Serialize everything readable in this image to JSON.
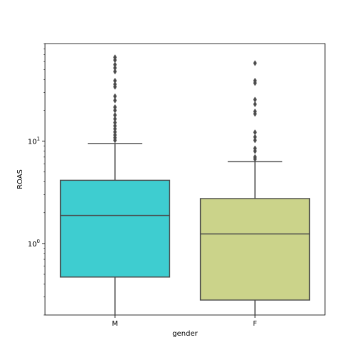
{
  "chart_data": {
    "type": "boxplot",
    "title": "",
    "xlabel": "gender",
    "ylabel": "ROAS",
    "yscale": "log",
    "ylim": [
      0.2,
      90
    ],
    "grid": false,
    "legend": "none",
    "y_tick_labels": [
      {
        "value": 1,
        "base": "10",
        "exp": "0"
      },
      {
        "value": 10,
        "base": "10",
        "exp": "1"
      }
    ],
    "categories": [
      "M",
      "F"
    ],
    "series": [
      {
        "category": "M",
        "color": "#3ecdd0",
        "whisker_low": 0.2,
        "q1": 0.47,
        "median": 1.88,
        "q3": 4.15,
        "whisker_high": 9.5,
        "outliers": [
          10.2,
          10.8,
          11.5,
          12.3,
          13.2,
          14.1,
          15.2,
          16.5,
          18.0,
          20.0,
          21.5,
          25.0,
          27.5,
          34.0,
          36.0,
          39.0,
          48.0,
          52.0,
          56.0,
          62.0,
          66.0
        ]
      },
      {
        "category": "F",
        "color": "#cbd38a",
        "whisker_low": 0.2,
        "q1": 0.28,
        "median": 1.24,
        "q3": 2.75,
        "whisker_high": 6.3,
        "outliers": [
          6.7,
          7.0,
          8.0,
          8.5,
          10.2,
          11.0,
          12.2,
          18.5,
          19.5,
          23.0,
          25.5,
          37.0,
          39.0,
          58.0
        ]
      }
    ]
  }
}
